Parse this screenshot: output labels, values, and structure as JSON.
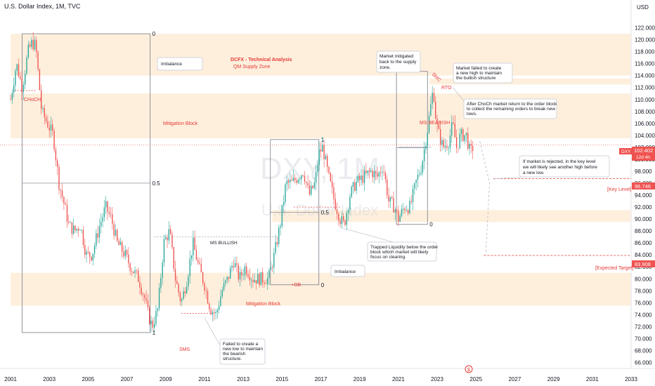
{
  "header": {
    "title": "U.S. Dollar Index, 1M, TVC"
  },
  "colors": {
    "up": "#26a69a",
    "down": "#ef5350",
    "zone": "#fde9d2",
    "accent": "#e53935",
    "line": "#787b86"
  },
  "watermark": {
    "symbol": "DXY, 1M",
    "name": "U.S. Dollar Index"
  },
  "chart_data": {
    "type": "candlestick",
    "title": "U.S. Dollar Index, 1M, TVC",
    "currency": "USD",
    "ylim": [
      65,
      125
    ],
    "xlim": [
      2001,
      2033
    ],
    "y_ticks": [
      "122.000",
      "120.000",
      "118.000",
      "116.000",
      "114.000",
      "112.000",
      "110.000",
      "108.000",
      "106.000",
      "104.000",
      "102.000",
      "100.000",
      "98.000",
      "96.000",
      "94.000",
      "92.000",
      "90.000",
      "88.000",
      "86.000",
      "84.000",
      "82.000",
      "80.000",
      "78.000",
      "76.000",
      "74.000",
      "72.000",
      "70.000",
      "68.000",
      "66.000"
    ],
    "x_ticks": [
      "2001",
      "2003",
      "2005",
      "2007",
      "2009",
      "2011",
      "2013",
      "2015",
      "2017",
      "2019",
      "2021",
      "2023",
      "2025",
      "2027",
      "2029",
      "2031",
      "2033"
    ],
    "price_path": [
      [
        2001.0,
        110
      ],
      [
        2001.3,
        116
      ],
      [
        2001.6,
        112
      ],
      [
        2001.9,
        118
      ],
      [
        2002.1,
        119.5
      ],
      [
        2002.3,
        119
      ],
      [
        2002.6,
        108
      ],
      [
        2002.9,
        106
      ],
      [
        2003.2,
        104
      ],
      [
        2003.5,
        96
      ],
      [
        2003.8,
        92
      ],
      [
        2004.0,
        89
      ],
      [
        2004.3,
        88
      ],
      [
        2004.6,
        89
      ],
      [
        2004.9,
        84
      ],
      [
        2005.2,
        84
      ],
      [
        2005.6,
        89
      ],
      [
        2005.9,
        92
      ],
      [
        2006.2,
        90
      ],
      [
        2006.5,
        86
      ],
      [
        2006.9,
        84
      ],
      [
        2007.2,
        82
      ],
      [
        2007.6,
        80
      ],
      [
        2007.9,
        77
      ],
      [
        2008.1,
        74
      ],
      [
        2008.3,
        72
      ],
      [
        2008.6,
        75
      ],
      [
        2008.9,
        86
      ],
      [
        2009.2,
        88
      ],
      [
        2009.5,
        80
      ],
      [
        2009.8,
        76
      ],
      [
        2010.1,
        80
      ],
      [
        2010.4,
        86
      ],
      [
        2010.7,
        82
      ],
      [
        2011.0,
        79
      ],
      [
        2011.3,
        75
      ],
      [
        2011.6,
        74
      ],
      [
        2011.9,
        78
      ],
      [
        2012.2,
        80
      ],
      [
        2012.5,
        83
      ],
      [
        2012.8,
        80
      ],
      [
        2013.1,
        82
      ],
      [
        2013.5,
        80
      ],
      [
        2013.9,
        80
      ],
      [
        2014.3,
        80
      ],
      [
        2014.6,
        84
      ],
      [
        2014.9,
        89
      ],
      [
        2015.2,
        96
      ],
      [
        2015.5,
        96
      ],
      [
        2015.8,
        97
      ],
      [
        2016.1,
        98
      ],
      [
        2016.4,
        94
      ],
      [
        2016.7,
        96
      ],
      [
        2016.9,
        101
      ],
      [
        2017.1,
        102
      ],
      [
        2017.4,
        97
      ],
      [
        2017.7,
        93
      ],
      [
        2018.0,
        90
      ],
      [
        2018.2,
        89
      ],
      [
        2018.5,
        94
      ],
      [
        2018.8,
        96
      ],
      [
        2019.2,
        97
      ],
      [
        2019.6,
        98
      ],
      [
        2019.9,
        97
      ],
      [
        2020.2,
        99
      ],
      [
        2020.5,
        93
      ],
      [
        2020.8,
        92
      ],
      [
        2021.0,
        90
      ],
      [
        2021.3,
        92
      ],
      [
        2021.6,
        92
      ],
      [
        2021.9,
        96
      ],
      [
        2022.2,
        99
      ],
      [
        2022.5,
        105
      ],
      [
        2022.8,
        112
      ],
      [
        2022.95,
        106
      ],
      [
        2023.1,
        104
      ],
      [
        2023.3,
        102
      ],
      [
        2023.6,
        103
      ],
      [
        2023.8,
        106
      ],
      [
        2024.0,
        102
      ],
      [
        2024.2,
        104
      ],
      [
        2024.5,
        104
      ],
      [
        2024.7,
        101
      ],
      [
        2024.9,
        102.4
      ]
    ],
    "zones": [
      {
        "x0": 2001.0,
        "x1": 2033.0,
        "y0": 114.0,
        "y1": 121.0
      },
      {
        "x0": 2001.0,
        "x1": 2033.0,
        "y0": 103.5,
        "y1": 111.0
      },
      {
        "x0": 2001.0,
        "x1": 2033.0,
        "y0": 75.5,
        "y1": 81.0
      },
      {
        "x0": 2014.5,
        "x1": 2033.0,
        "y0": 91.5,
        "y1": 89.5
      },
      {
        "x0": 2022.6,
        "x1": 2033.0,
        "y0": 113.5,
        "y1": 112.5
      }
    ],
    "fib_boxes": [
      {
        "x0": 2001.6,
        "x1": 2008.2,
        "y0": 71,
        "y1": 121,
        "mid_label": "0.5",
        "top_label": "0",
        "bottom_label": "1"
      },
      {
        "x0": 2014.4,
        "x1": 2016.9,
        "y0": 79,
        "y1": 103.3,
        "mid_label": "0.5",
        "top_label": "1",
        "bottom_label": "0"
      },
      {
        "x0": 2020.9,
        "x1": 2022.5,
        "y0": 89.1,
        "y1": 114.7,
        "mid_label": "",
        "top_label": "",
        "bottom_label": "0"
      }
    ],
    "levels": {
      "current": {
        "label": "DXY",
        "value": "102.402",
        "sub": "12d 4h"
      },
      "key": {
        "value": "96.746",
        "label": "[Key Level]"
      },
      "target": {
        "value": "83.908",
        "label": "[Expected Target]"
      }
    },
    "labels": {
      "choch": "CHoCH",
      "mitigation_upper": "Mitigation Block",
      "mitigation_lower": "Mitigation Block",
      "ms_bullish": "MS BULLISH",
      "ms_bearish": "MS BEARISH",
      "ob": "+OB",
      "sms": "SMS",
      "smc": "SMC",
      "rto": "RTO",
      "analysis_title": "DCFX - Technical Analysis",
      "analysis_sub": "QM Supply Zone"
    },
    "callouts": {
      "imbalance_top": "Imbalance",
      "imbalance_mid": "Imbalance",
      "mitigated": [
        "Market mitigated",
        "back to the supply",
        "zone."
      ],
      "failed_high": [
        "Market failed to create",
        "a new high to maintain",
        "the bullish structure"
      ],
      "choch_return": [
        "After ChoCh market return to the order block",
        "to collect the remaining orders to break new",
        "lows."
      ],
      "rejected": [
        "If market is rejected, in the key level",
        "we will likely see another high before",
        "a new low."
      ],
      "trapped": [
        "Trapped Liquidity below the order",
        "block which market will likely",
        "focus on clearing."
      ],
      "failed_low": [
        "Failed to create a",
        "new low to maintain",
        "the bearish",
        "structure."
      ]
    }
  }
}
